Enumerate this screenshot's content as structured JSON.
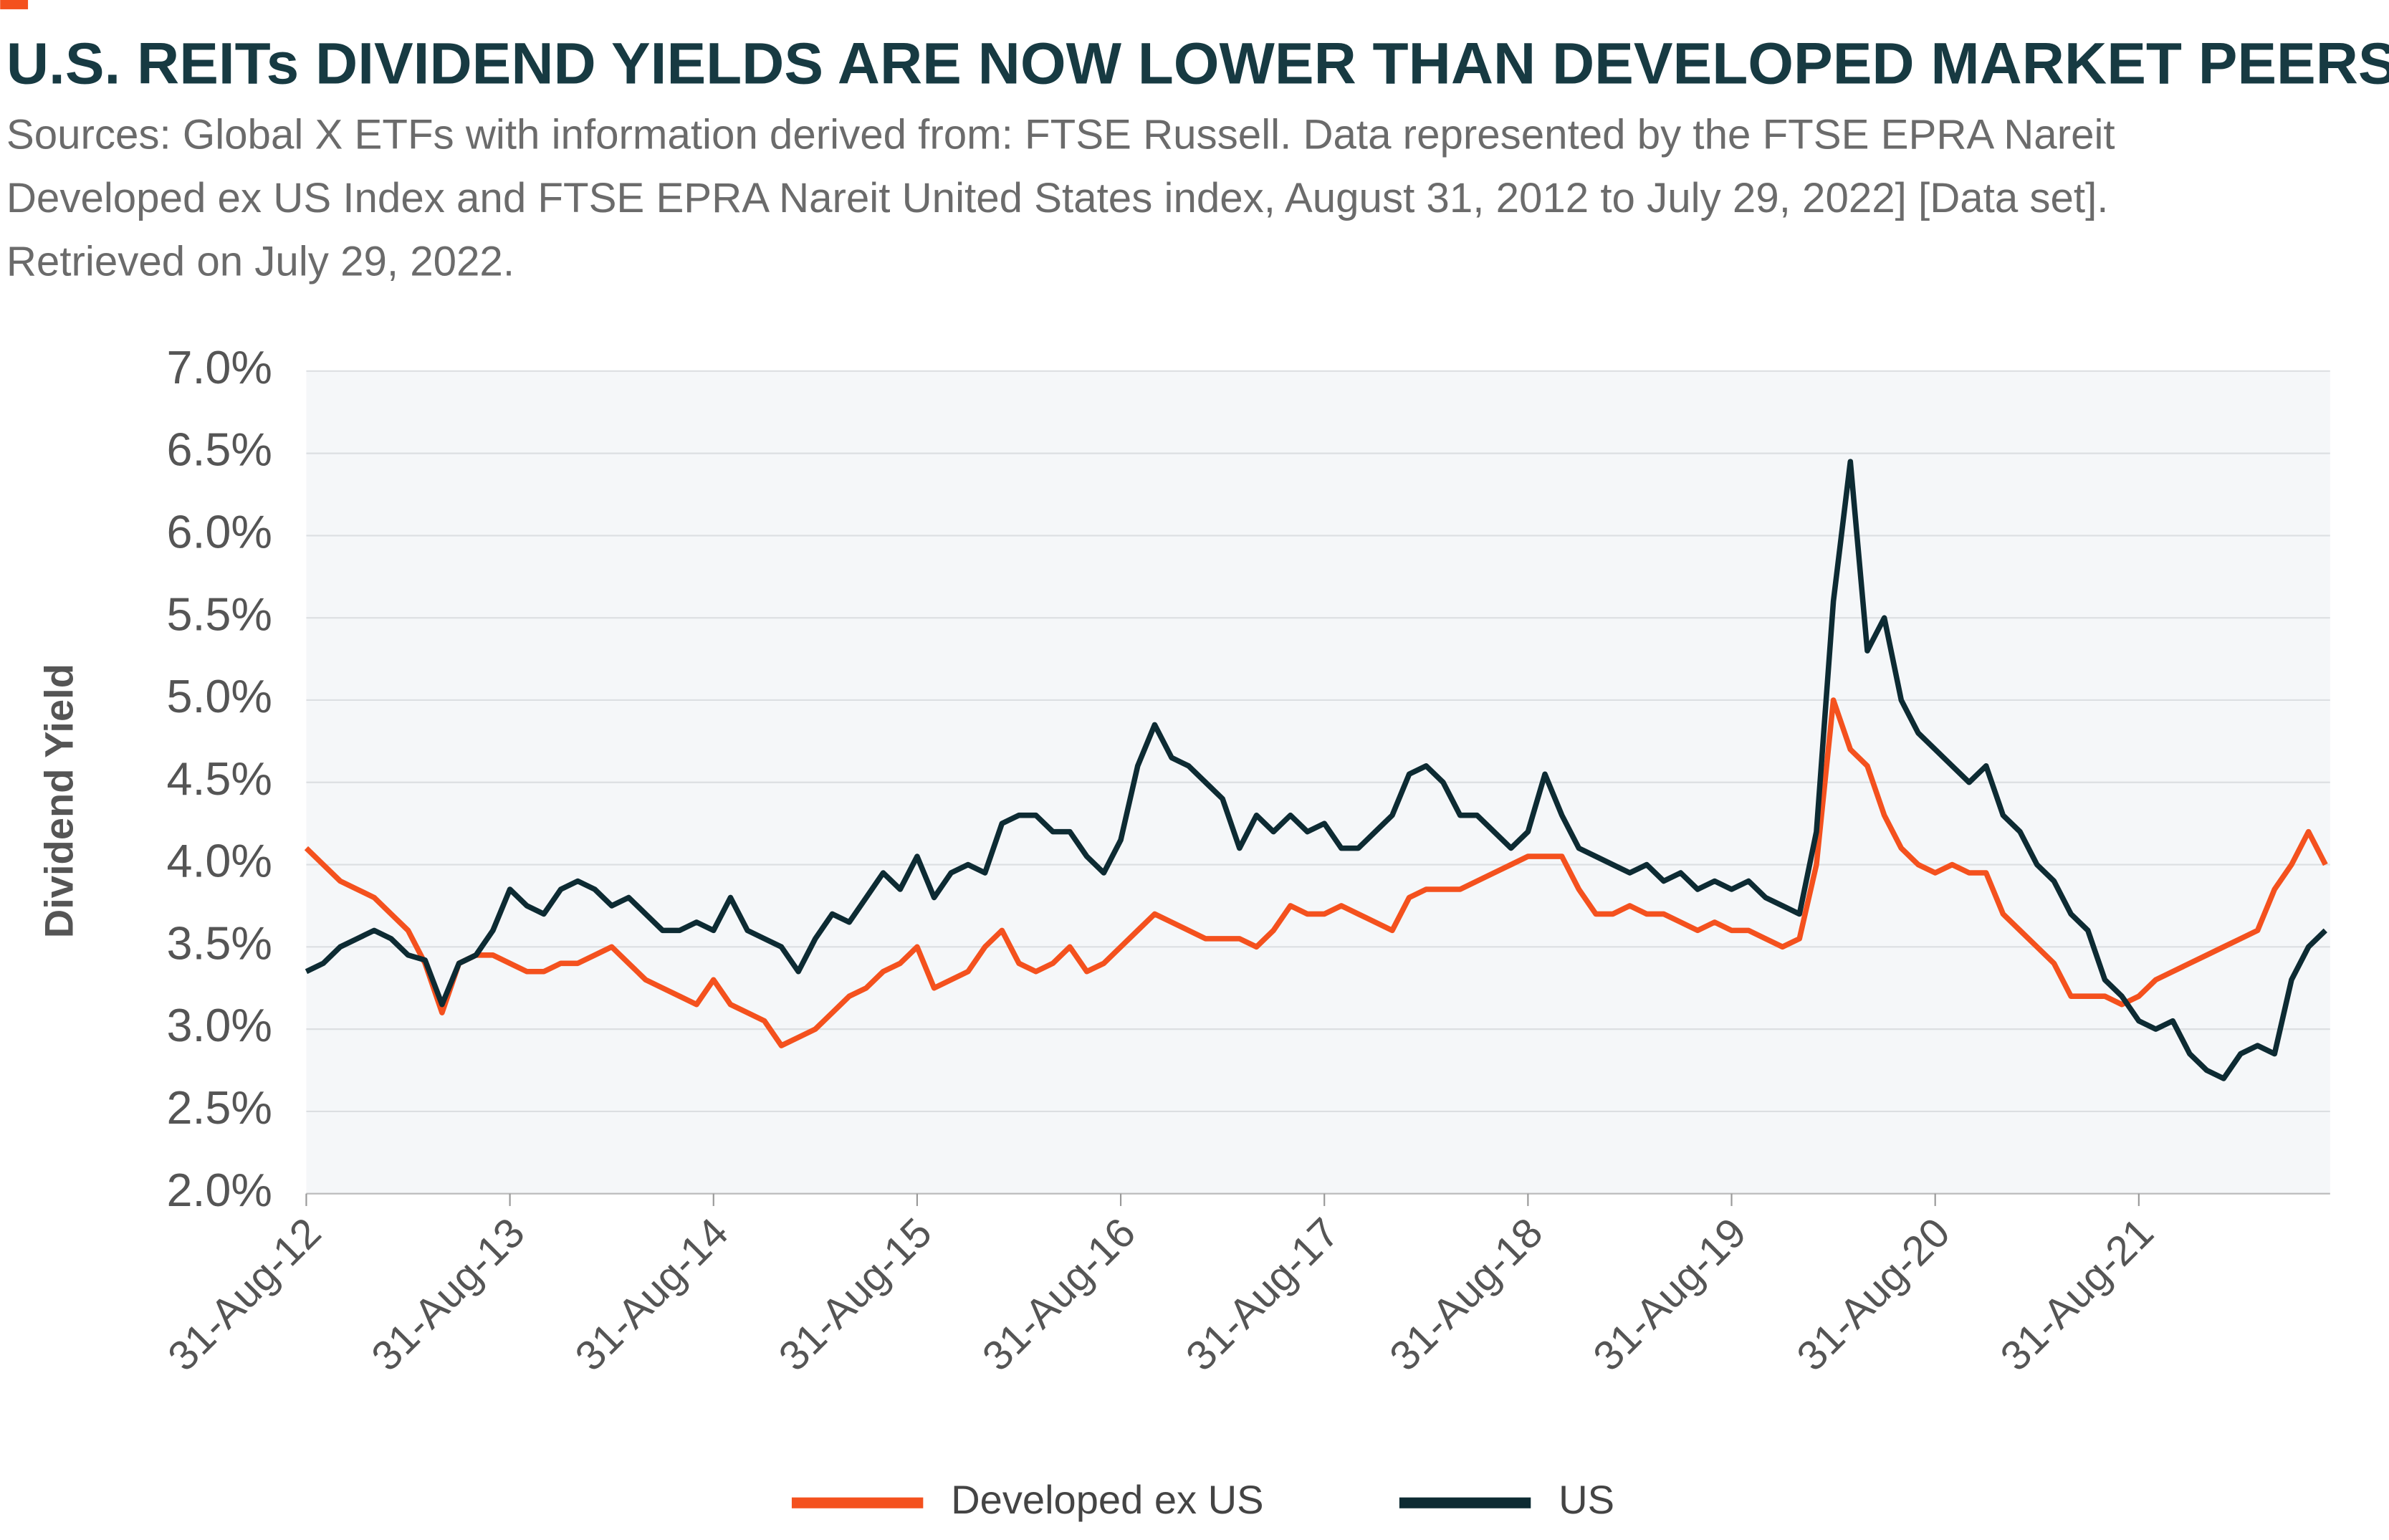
{
  "chart_data": {
    "type": "line",
    "title": "U.S. REITs DIVIDEND YIELDS ARE NOW LOWER THAN DEVELOPED MARKET PEERS",
    "subtitle": [
      "Sources: Global X ETFs with information derived from: FTSE Russell. Data represented by the FTSE EPRA Nareit",
      "Developed ex US Index and FTSE EPRA Nareit United States index, August 31, 2012 to July 29, 2022] [Data set].",
      "Retrieved on July 29, 2022."
    ],
    "y_label": "Dividend Yield",
    "categories": [
      "31-Aug-12",
      null,
      null,
      null,
      null,
      null,
      null,
      null,
      null,
      null,
      null,
      null,
      "31-Aug-13",
      null,
      null,
      null,
      null,
      null,
      null,
      null,
      null,
      null,
      null,
      null,
      "31-Aug-14",
      null,
      null,
      null,
      null,
      null,
      null,
      null,
      null,
      null,
      null,
      null,
      "31-Aug-15",
      null,
      null,
      null,
      null,
      null,
      null,
      null,
      null,
      null,
      null,
      null,
      "31-Aug-16",
      null,
      null,
      null,
      null,
      null,
      null,
      null,
      null,
      null,
      null,
      null,
      "31-Aug-17",
      null,
      null,
      null,
      null,
      null,
      null,
      null,
      null,
      null,
      null,
      null,
      "31-Aug-18",
      null,
      null,
      null,
      null,
      null,
      null,
      null,
      null,
      null,
      null,
      null,
      "31-Aug-19",
      null,
      null,
      null,
      null,
      null,
      null,
      null,
      null,
      null,
      null,
      null,
      "31-Aug-20",
      null,
      null,
      null,
      null,
      null,
      null,
      null,
      null,
      null,
      null,
      null,
      "31-Aug-21",
      null,
      null,
      null,
      null,
      null,
      null,
      null,
      null,
      null,
      null,
      null
    ],
    "series": [
      {
        "name": "Developed ex US",
        "color": "#f4511e",
        "values": [
          4.1,
          4.0,
          3.9,
          3.85,
          3.8,
          3.7,
          3.6,
          3.4,
          3.1,
          3.4,
          3.45,
          3.45,
          3.4,
          3.35,
          3.35,
          3.4,
          3.4,
          3.45,
          3.5,
          3.4,
          3.3,
          3.25,
          3.2,
          3.15,
          3.3,
          3.15,
          3.1,
          3.05,
          2.9,
          2.95,
          3.0,
          3.1,
          3.2,
          3.25,
          3.35,
          3.4,
          3.5,
          3.25,
          3.3,
          3.35,
          3.5,
          3.6,
          3.4,
          3.35,
          3.4,
          3.5,
          3.35,
          3.4,
          3.5,
          3.6,
          3.7,
          3.65,
          3.6,
          3.55,
          3.55,
          3.55,
          3.5,
          3.6,
          3.75,
          3.7,
          3.7,
          3.75,
          3.7,
          3.65,
          3.6,
          3.8,
          3.85,
          3.85,
          3.85,
          3.9,
          3.95,
          4.0,
          4.05,
          4.05,
          4.05,
          3.85,
          3.7,
          3.7,
          3.75,
          3.7,
          3.7,
          3.65,
          3.6,
          3.65,
          3.6,
          3.6,
          3.55,
          3.5,
          3.55,
          4.0,
          5.0,
          4.7,
          4.6,
          4.3,
          4.1,
          4.0,
          3.95,
          4.0,
          3.95,
          3.95,
          3.7,
          3.6,
          3.5,
          3.4,
          3.2,
          3.2,
          3.2,
          3.15,
          3.2,
          3.3,
          3.35,
          3.4,
          3.45,
          3.5,
          3.55,
          3.6,
          3.85,
          4.0,
          4.2,
          4.0
        ]
      },
      {
        "name": "US",
        "color": "#0d2b33",
        "values": [
          3.35,
          3.4,
          3.5,
          3.55,
          3.6,
          3.55,
          3.45,
          3.42,
          3.15,
          3.4,
          3.45,
          3.6,
          3.85,
          3.75,
          3.7,
          3.85,
          3.9,
          3.85,
          3.75,
          3.8,
          3.7,
          3.6,
          3.6,
          3.65,
          3.6,
          3.8,
          3.6,
          3.55,
          3.5,
          3.35,
          3.55,
          3.7,
          3.65,
          3.8,
          3.95,
          3.85,
          4.05,
          3.8,
          3.95,
          4.0,
          3.95,
          4.25,
          4.3,
          4.3,
          4.2,
          4.2,
          4.05,
          3.95,
          4.15,
          4.6,
          4.85,
          4.65,
          4.6,
          4.5,
          4.4,
          4.1,
          4.3,
          4.2,
          4.3,
          4.2,
          4.25,
          4.1,
          4.1,
          4.2,
          4.3,
          4.55,
          4.6,
          4.5,
          4.3,
          4.3,
          4.2,
          4.1,
          4.2,
          4.55,
          4.3,
          4.1,
          4.05,
          4.0,
          3.95,
          4.0,
          3.9,
          3.95,
          3.85,
          3.9,
          3.85,
          3.9,
          3.8,
          3.75,
          3.7,
          4.2,
          5.6,
          6.45,
          5.3,
          5.5,
          5.0,
          4.8,
          4.7,
          4.6,
          4.5,
          4.6,
          4.3,
          4.2,
          4.0,
          3.9,
          3.7,
          3.6,
          3.3,
          3.2,
          3.05,
          3.0,
          3.05,
          2.85,
          2.75,
          2.7,
          2.85,
          2.9,
          2.85,
          3.3,
          3.5,
          3.6
        ]
      }
    ],
    "ylim": [
      2,
      7
    ],
    "yticks": [
      {
        "value": 2,
        "label": "2.0%"
      },
      {
        "value": 2.5,
        "label": "2.5%"
      },
      {
        "value": 3,
        "label": "3.0%"
      },
      {
        "value": 3.5,
        "label": "3.5%"
      },
      {
        "value": 4,
        "label": "4.0%"
      },
      {
        "value": 4.5,
        "label": "4.5%"
      },
      {
        "value": 5,
        "label": "5.0%"
      },
      {
        "value": 5.5,
        "label": "5.5%"
      },
      {
        "value": 6,
        "label": "6.0%"
      },
      {
        "value": 6.5,
        "label": "6.5%"
      },
      {
        "value": 7,
        "label": "7.0%"
      }
    ],
    "grid": true
  }
}
